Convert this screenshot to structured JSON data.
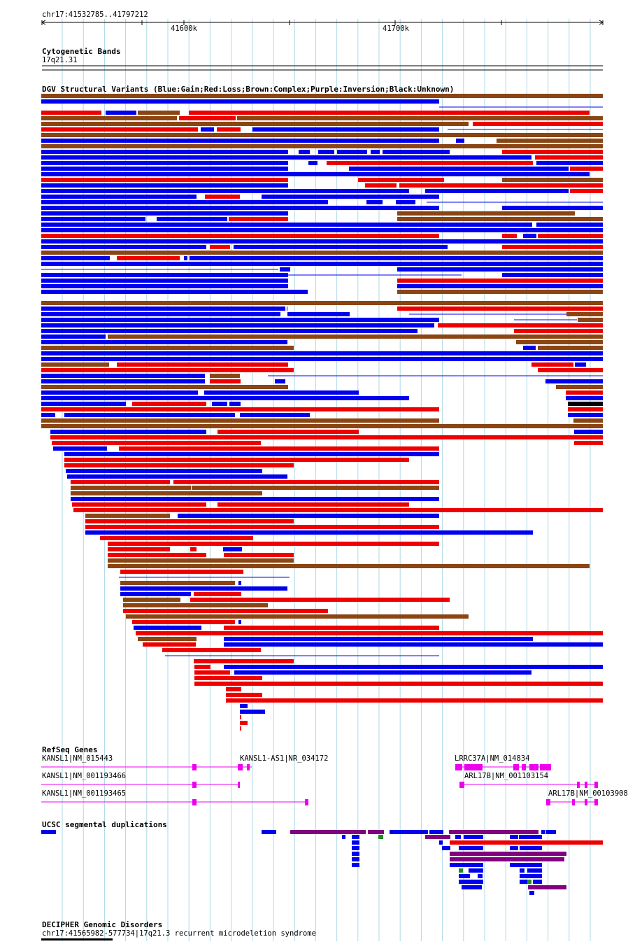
{
  "ruler": {
    "region": "chr17:41532785..41797212",
    "ticks": [
      "41600k",
      "41700k"
    ]
  },
  "tracks": {
    "cytoband": {
      "title": "Cytogenetic Bands",
      "band": "17q21.31"
    },
    "dgv": {
      "title": "DGV Structural Variants (Blue:Gain;Red:Loss;Brown:Complex;Purple:Inversion;Black:Unknown)"
    },
    "refseq": {
      "title": "RefSeq Genes",
      "genes": [
        "KANSL1|NM_015443",
        "KANSL1-AS1|NR_034172",
        "LRRC37A|NM_014834",
        "KANSL1|NM_001193466",
        "ARL17B|NM_001103154",
        "KANSL1|NM_001193465",
        "ARL17B|NM_00103908"
      ]
    },
    "segdup": {
      "title": "UCSC segmental duplications"
    },
    "decipher": {
      "title": "DECIPHER Genomic Disorders",
      "item": "chr17:41565982-577734|17q21.3 recurrent microdeletion syndrome"
    }
  },
  "colors": {
    "gain": "#0000ee",
    "loss": "#ee0000",
    "complex": "#8b4513",
    "inversion": "#800080",
    "unknown": "#000000",
    "gene": "#ee00ee",
    "segdup_green": "#228b22",
    "grid": "#add8e6"
  }
}
